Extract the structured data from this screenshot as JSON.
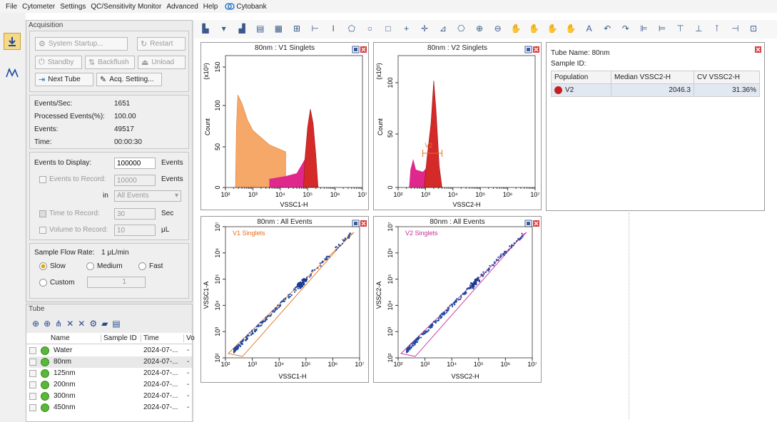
{
  "menu": {
    "items": [
      "File",
      "Cytometer",
      "Settings",
      "QC/Sensitivity Monitor",
      "Advanced",
      "Help"
    ],
    "brand": "Cytobank"
  },
  "acquisition": {
    "title": "Acquisition",
    "system_startup": "System Startup...",
    "restart": "Restart",
    "standby": "Standby",
    "backflush": "Backflush",
    "unload": "Unload",
    "next_tube": "Next Tube",
    "acq_setting": "Acq. Setting..."
  },
  "stats": {
    "events_sec_label": "Events/Sec:",
    "events_sec": "1651",
    "processed_label": "Processed Events(%):",
    "processed": "100.00",
    "events_label": "Events:",
    "events": "49517",
    "time_label": "Time:",
    "time": "00:00:30"
  },
  "display": {
    "events_to_display_label": "Events to Display:",
    "events_to_display": "100000",
    "events_unit": "Events",
    "events_to_record_label": "Events to Record:",
    "events_to_record": "10000",
    "in_label": "in",
    "in_value": "All Events",
    "time_to_record_label": "Time to Record:",
    "time_to_record": "30",
    "time_unit": "Sec",
    "volume_label": "Volume to Record:",
    "volume": "10",
    "volume_unit": "μL"
  },
  "flow": {
    "label": "Sample Flow Rate:",
    "value": "1 μL/min",
    "slow": "Slow",
    "medium": "Medium",
    "fast": "Fast",
    "custom": "Custom",
    "custom_value": "1"
  },
  "tube": {
    "title": "Tube",
    "col_name": "Name",
    "col_sample": "Sample ID",
    "col_time": "Time",
    "col_vol": "Vo",
    "rows": [
      {
        "name": "Water",
        "time": "2024-07-...",
        "v": "-"
      },
      {
        "name": "80nm",
        "time": "2024-07-...",
        "v": "-"
      },
      {
        "name": "125nm",
        "time": "2024-07-...",
        "v": "-"
      },
      {
        "name": "200nm",
        "time": "2024-07-...",
        "v": "-"
      },
      {
        "name": "300nm",
        "time": "2024-07-...",
        "v": "-"
      },
      {
        "name": "450nm",
        "time": "2024-07-...",
        "v": "-"
      }
    ]
  },
  "plots": {
    "p1": {
      "title": "80nm : V1 Singlets",
      "xlabel": "VSSC1-H",
      "ylabel": "Count",
      "yexp": "(x10¹)",
      "yticks": [
        "150",
        "100",
        "50",
        "0"
      ],
      "xticks": [
        "10²",
        "10³",
        "10⁴",
        "10⁵",
        "10⁶",
        "10⁷"
      ]
    },
    "p2": {
      "title": "80nm : V2 Singlets",
      "xlabel": "VSSC2-H",
      "ylabel": "Count",
      "yexp": "(x10¹)",
      "yticks": [
        "100",
        "50",
        "0"
      ],
      "gate": "V2",
      "xticks": [
        "10²",
        "10³",
        "10⁴",
        "10⁵",
        "10⁶",
        "10⁷"
      ]
    },
    "p3": {
      "title": "80nm : All Events",
      "xlabel": "VSSC1-H",
      "ylabel": "VSSC1-A",
      "gate": "V1 Singlets",
      "ticks": [
        "10²",
        "10³",
        "10⁴",
        "10⁵",
        "10⁶",
        "10⁷"
      ]
    },
    "p4": {
      "title": "80nm : All Events",
      "xlabel": "VSSC2-H",
      "ylabel": "VSSC2-A",
      "gate": "V2 Singlets",
      "ticks": [
        "10²",
        "10³",
        "10⁴",
        "10⁵",
        "10⁶",
        "10⁷"
      ]
    }
  },
  "stat_table": {
    "tube_name_label": "Tube Name:",
    "tube_name": "80nm",
    "sample_id_label": "Sample ID:",
    "col_population": "Population",
    "col_median": "Median VSSC2-H",
    "col_cv": "CV VSSC2-H",
    "population": "V2",
    "median": "2046.3",
    "cv": "31.36%"
  },
  "colors": {
    "orange": "#f0a060",
    "red": "#d42a2a",
    "magenta": "#d8208a",
    "blue": "#2048a0"
  }
}
